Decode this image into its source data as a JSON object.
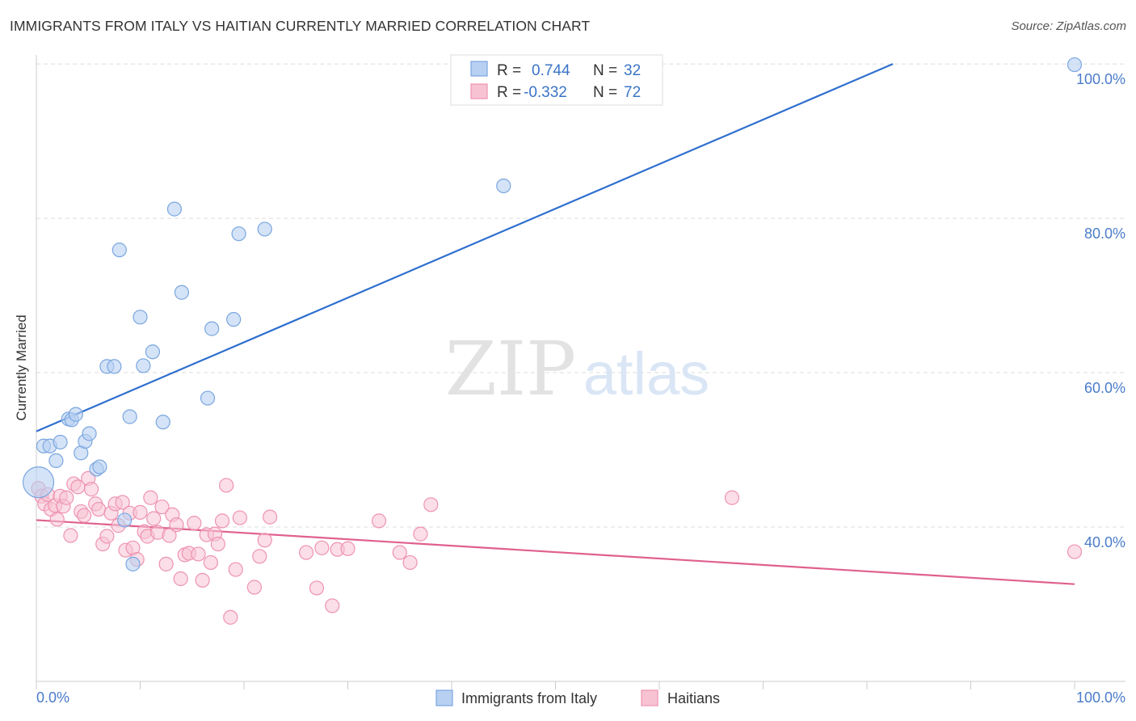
{
  "header": {
    "title": "IMMIGRANTS FROM ITALY VS HAITIAN CURRENTLY MARRIED CORRELATION CHART",
    "source": "Source: ZipAtlas.com"
  },
  "watermark": {
    "zip": "ZIP",
    "atlas": "atlas"
  },
  "legend": {
    "italy": {
      "r_label": "R =",
      "r_value": "0.744",
      "n_label": "N =",
      "n_value": "32"
    },
    "haiti": {
      "r_label": "R =",
      "r_value": "-0.332",
      "n_label": "N =",
      "n_value": "72"
    }
  },
  "colors": {
    "italy_fill": "#b8d0f2",
    "italy_stroke": "#7aa6e0",
    "italy_line": "#2f6fcf",
    "haiti_fill": "#f7c3d3",
    "haiti_stroke": "#ee93b1",
    "haiti_line": "#e0608f",
    "tick_text": "#4a7cc9",
    "grid": "#dddddd"
  },
  "chart_data": {
    "type": "scatter",
    "xlabel": "",
    "ylabel": "Currently Married",
    "xlim": [
      0,
      100
    ],
    "ylim": [
      20,
      102
    ],
    "x_tick_labels": [
      "0.0%",
      "100.0%"
    ],
    "y_ticks": [
      40,
      60,
      80,
      100
    ],
    "y_tick_labels": [
      "40.0%",
      "60.0%",
      "80.0%",
      "100.0%"
    ],
    "grid": true,
    "legend_position": "bottom-center",
    "series": [
      {
        "name": "Immigrants from Italy",
        "points": [
          [
            0.2,
            45.8
          ],
          [
            0.7,
            50.5
          ],
          [
            1.3,
            50.5
          ],
          [
            1.9,
            48.6
          ],
          [
            2.3,
            51.0
          ],
          [
            3.1,
            54.0
          ],
          [
            3.4,
            53.9
          ],
          [
            3.8,
            54.6
          ],
          [
            4.3,
            49.6
          ],
          [
            4.7,
            51.1
          ],
          [
            5.1,
            52.1
          ],
          [
            5.8,
            47.5
          ],
          [
            6.1,
            47.8
          ],
          [
            6.8,
            60.8
          ],
          [
            7.5,
            60.8
          ],
          [
            8.0,
            75.9
          ],
          [
            8.5,
            40.9
          ],
          [
            9.0,
            54.3
          ],
          [
            9.3,
            35.2
          ],
          [
            10.0,
            67.2
          ],
          [
            10.3,
            60.9
          ],
          [
            11.2,
            62.7
          ],
          [
            12.2,
            53.6
          ],
          [
            13.3,
            81.2
          ],
          [
            14.0,
            70.4
          ],
          [
            16.5,
            56.7
          ],
          [
            16.9,
            65.7
          ],
          [
            19.0,
            66.9
          ],
          [
            19.5,
            78.0
          ],
          [
            22.0,
            78.6
          ],
          [
            45.0,
            84.2
          ],
          [
            100.0,
            99.9
          ]
        ],
        "trendline": {
          "x": [
            0,
            82.5
          ],
          "y": [
            52.4,
            100
          ]
        }
      },
      {
        "name": "Haitians",
        "points": [
          [
            0.2,
            45.0
          ],
          [
            0.5,
            44.0
          ],
          [
            0.8,
            43.0
          ],
          [
            1.1,
            44.2
          ],
          [
            1.4,
            42.3
          ],
          [
            1.8,
            42.8
          ],
          [
            2.0,
            41.0
          ],
          [
            2.3,
            44.0
          ],
          [
            2.6,
            42.7
          ],
          [
            2.9,
            43.8
          ],
          [
            3.3,
            38.9
          ],
          [
            3.6,
            45.6
          ],
          [
            4.0,
            45.2
          ],
          [
            4.3,
            42.0
          ],
          [
            4.6,
            41.5
          ],
          [
            5.0,
            46.3
          ],
          [
            5.3,
            44.9
          ],
          [
            5.7,
            43.0
          ],
          [
            6.0,
            42.3
          ],
          [
            6.4,
            37.8
          ],
          [
            6.8,
            38.8
          ],
          [
            7.2,
            41.8
          ],
          [
            7.6,
            43.0
          ],
          [
            7.9,
            40.2
          ],
          [
            8.3,
            43.2
          ],
          [
            8.6,
            37.0
          ],
          [
            9.0,
            41.8
          ],
          [
            9.3,
            37.3
          ],
          [
            9.7,
            35.8
          ],
          [
            10.0,
            41.9
          ],
          [
            10.4,
            39.4
          ],
          [
            10.7,
            38.8
          ],
          [
            11.0,
            43.8
          ],
          [
            11.3,
            41.1
          ],
          [
            11.7,
            39.3
          ],
          [
            12.1,
            42.6
          ],
          [
            12.5,
            35.2
          ],
          [
            12.8,
            38.9
          ],
          [
            13.1,
            41.6
          ],
          [
            13.5,
            40.3
          ],
          [
            13.9,
            33.3
          ],
          [
            14.3,
            36.4
          ],
          [
            14.7,
            36.6
          ],
          [
            15.2,
            40.5
          ],
          [
            15.6,
            36.5
          ],
          [
            16.0,
            33.1
          ],
          [
            16.4,
            39.0
          ],
          [
            16.8,
            35.4
          ],
          [
            17.2,
            39.1
          ],
          [
            17.5,
            37.8
          ],
          [
            17.9,
            40.8
          ],
          [
            18.3,
            45.4
          ],
          [
            18.7,
            28.3
          ],
          [
            19.2,
            34.5
          ],
          [
            19.6,
            41.2
          ],
          [
            21.0,
            32.2
          ],
          [
            21.5,
            36.2
          ],
          [
            22.0,
            38.3
          ],
          [
            22.5,
            41.3
          ],
          [
            26.0,
            36.7
          ],
          [
            27.0,
            32.1
          ],
          [
            27.5,
            37.3
          ],
          [
            28.5,
            29.8
          ],
          [
            29.0,
            37.1
          ],
          [
            30.0,
            37.2
          ],
          [
            33.0,
            40.8
          ],
          [
            35.0,
            36.7
          ],
          [
            36.0,
            35.4
          ],
          [
            37.0,
            39.1
          ],
          [
            38.0,
            42.9
          ],
          [
            67.0,
            43.8
          ],
          [
            100.0,
            36.8
          ]
        ],
        "trendline": {
          "x": [
            0,
            100
          ],
          "y": [
            40.9,
            32.6
          ]
        }
      }
    ]
  }
}
